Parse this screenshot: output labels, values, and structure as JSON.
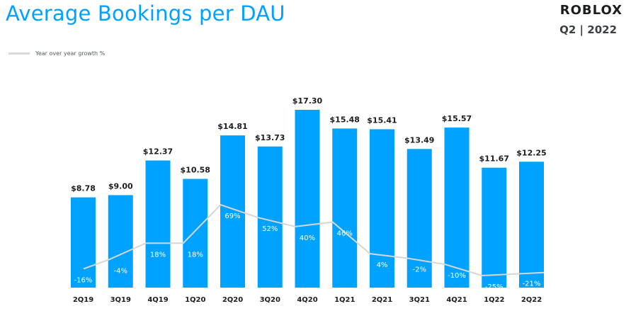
{
  "header": {
    "title": "Average Bookings per DAU",
    "brand": "ROBLOX",
    "period": "Q2 | 2022"
  },
  "colors": {
    "accent": "#00a2ff",
    "line": "#d6d6d6",
    "text_dark": "#1b1d21"
  },
  "chart_data": {
    "type": "bar",
    "categories": [
      "2Q19",
      "3Q19",
      "4Q19",
      "1Q20",
      "2Q20",
      "3Q20",
      "4Q20",
      "1Q21",
      "2Q21",
      "3Q21",
      "4Q21",
      "1Q22",
      "2Q22"
    ],
    "series": [
      {
        "type": "bar",
        "values": [
          8.78,
          9.0,
          12.37,
          10.58,
          14.81,
          13.73,
          17.3,
          15.48,
          15.41,
          13.49,
          15.57,
          11.67,
          12.25
        ],
        "labels": [
          "$8.78",
          "$9.00",
          "$12.37",
          "$10.58",
          "$14.81",
          "$13.73",
          "$17.30",
          "$15.48",
          "$15.41",
          "$13.49",
          "$15.57",
          "$11.67",
          "$12.25"
        ],
        "color": "#00a2ff"
      },
      {
        "name": "Year over year growth %",
        "type": "line",
        "values": [
          -16,
          -4,
          18,
          18,
          69,
          52,
          40,
          46,
          4,
          -2,
          -10,
          -25,
          -21
        ],
        "labels": [
          "-16%",
          "-4%",
          "18%",
          "18%",
          "69%",
          "52%",
          "40%",
          "46%",
          "4%",
          "-2%",
          "-10%",
          "-25%",
          "-21%"
        ],
        "color": "#d6d6d6"
      }
    ],
    "title": "Average Bookings per DAU",
    "xlabel": "",
    "ylabel": "",
    "ylim": [
      0,
      17.3
    ],
    "growth_ylim": [
      -40,
      100
    ],
    "grid": false,
    "legend": "top-left"
  }
}
